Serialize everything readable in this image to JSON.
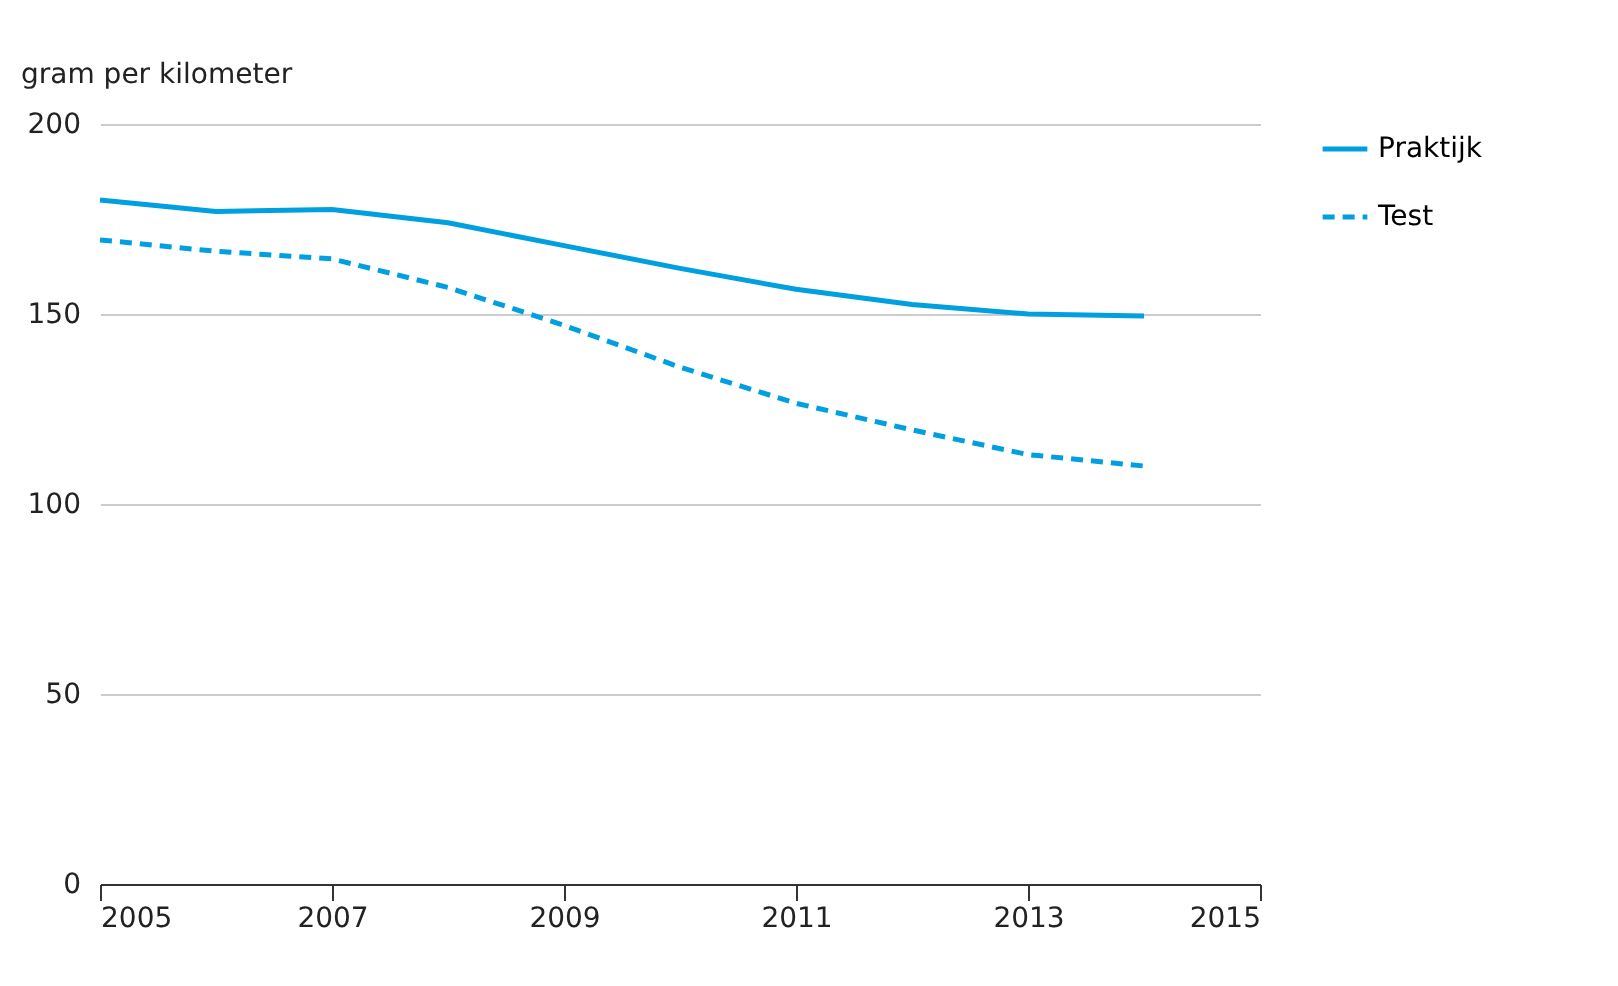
{
  "chart_data": {
    "type": "line",
    "ylabel": "gram per kilometer",
    "x": [
      2005,
      2006,
      2007,
      2008,
      2009,
      2010,
      2011,
      2012,
      2013,
      2014
    ],
    "series": [
      {
        "name": "Praktijk",
        "color": "#00a0e0",
        "line_style": "solid",
        "values": [
          180,
          177,
          177.5,
          174,
          168,
          162,
          156.5,
          152.5,
          150,
          149.5
        ]
      },
      {
        "name": "Test",
        "color": "#00a0e0",
        "line_style": "dashed",
        "values": [
          169.5,
          166.5,
          164.5,
          157,
          147,
          136,
          126.5,
          119.5,
          113,
          110
        ]
      }
    ],
    "xlim": [
      2005,
      2015
    ],
    "xticks": [
      2005,
      2007,
      2009,
      2011,
      2013,
      2015
    ],
    "ylim": [
      0,
      200
    ],
    "yticks": [
      0,
      50,
      100,
      150,
      200
    ],
    "grid": "y",
    "legend": "top right",
    "marker": "none"
  }
}
